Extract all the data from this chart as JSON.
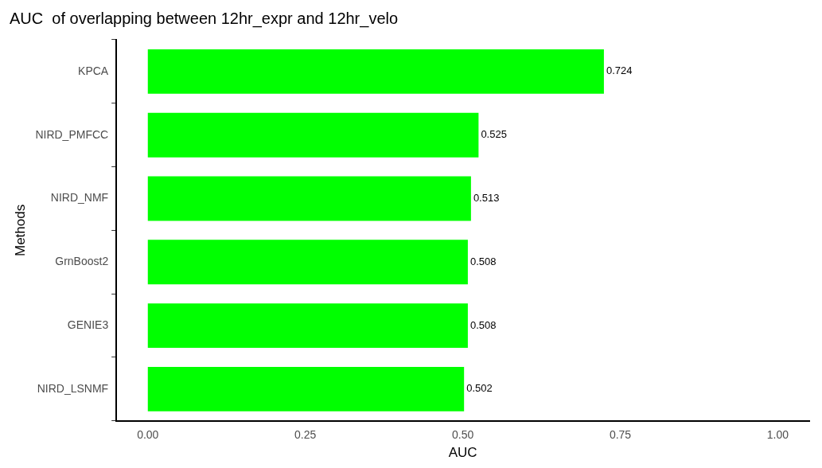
{
  "chart_data": {
    "type": "bar",
    "orientation": "horizontal",
    "title": "AUC  of overlapping between 12hr_expr and 12hr_velo",
    "xlabel": "AUC",
    "ylabel": "Methods",
    "categories": [
      "KPCA",
      "NIRD_PMFCC",
      "NIRD_NMF",
      "GrnBoost2",
      "GENIE3",
      "NIRD_LSNMF"
    ],
    "values": [
      0.724,
      0.525,
      0.513,
      0.508,
      0.508,
      0.502
    ],
    "color": "#00ff00",
    "xlim": [
      -0.05,
      1.05
    ],
    "xticks": [
      {
        "value": 0,
        "label": "0.00"
      },
      {
        "value": 0.25,
        "label": "0.25"
      },
      {
        "value": 0.5,
        "label": "0.50"
      },
      {
        "value": 0.75,
        "label": "0.75"
      },
      {
        "value": 1,
        "label": "1.00"
      }
    ],
    "grid": false,
    "legend": false,
    "data_labels": true
  }
}
